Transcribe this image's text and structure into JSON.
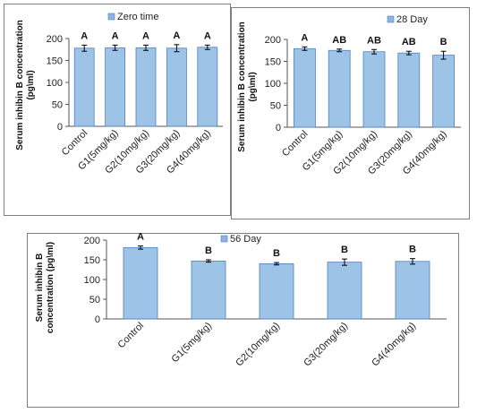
{
  "colors": {
    "bar_fill": "#9dc3e6",
    "bar_stroke": "#4f81bd",
    "legend_swatch": "#8eb4e3",
    "axis": "#555555"
  },
  "chart_data": [
    {
      "type": "bar",
      "legend": "Zero time",
      "legend_position": "top",
      "ylabel": "Serum inhibin B concentration (pg\\ml)",
      "ylim": [
        0,
        200
      ],
      "yticks": [
        0,
        50,
        100,
        150,
        200
      ],
      "yticks_text": [
        "0",
        "50",
        "100",
        "150",
        "200"
      ],
      "categories": [
        "Control",
        "G1(5mg/kg)",
        "G2(10mg/kg)",
        "G3(20mg/kg)",
        "G4(40mg/kg)"
      ],
      "values": [
        178,
        179,
        179,
        178,
        180
      ],
      "errors": [
        7,
        6,
        6,
        8,
        5
      ],
      "significance": [
        "A",
        "A",
        "A",
        "A",
        "A"
      ]
    },
    {
      "type": "bar",
      "legend": "28 Day",
      "legend_position": "top-right",
      "ylabel": "Serum inhibin B concentration (pg\\ml)",
      "ylim": [
        0,
        200
      ],
      "yticks": [
        0,
        50,
        100,
        150,
        200
      ],
      "yticks_text": [
        "0",
        "50",
        "100",
        "150",
        "200"
      ],
      "categories": [
        "Control",
        "G1(5mg/kg)",
        "G2(10mg/kg)",
        "G3(20mg/kg)",
        "G4(40mg/kg)"
      ],
      "values": [
        179,
        175,
        172,
        169,
        164
      ],
      "errors": [
        4,
        3,
        5,
        4,
        9
      ],
      "significance": [
        "A",
        "AB",
        "AB",
        "AB",
        "B"
      ]
    },
    {
      "type": "bar",
      "legend": "56 Day",
      "legend_position": "top",
      "ylabel": "Serum inhibin B concentration (pg\\ml)",
      "ylim": [
        0,
        200
      ],
      "yticks": [
        0,
        50,
        100,
        150,
        200
      ],
      "yticks_text": [
        "0",
        "50",
        "100",
        "150",
        "200"
      ],
      "categories": [
        "Control",
        "G1(5mg/kg)",
        "G2(10mg/kg)",
        "G3(20mg/kg)",
        "G4(40mg/kg)"
      ],
      "values": [
        181,
        147,
        140,
        144,
        146
      ],
      "errors": [
        4,
        3,
        3,
        8,
        7
      ],
      "significance": [
        "A",
        "B",
        "B",
        "B",
        "B"
      ]
    }
  ]
}
